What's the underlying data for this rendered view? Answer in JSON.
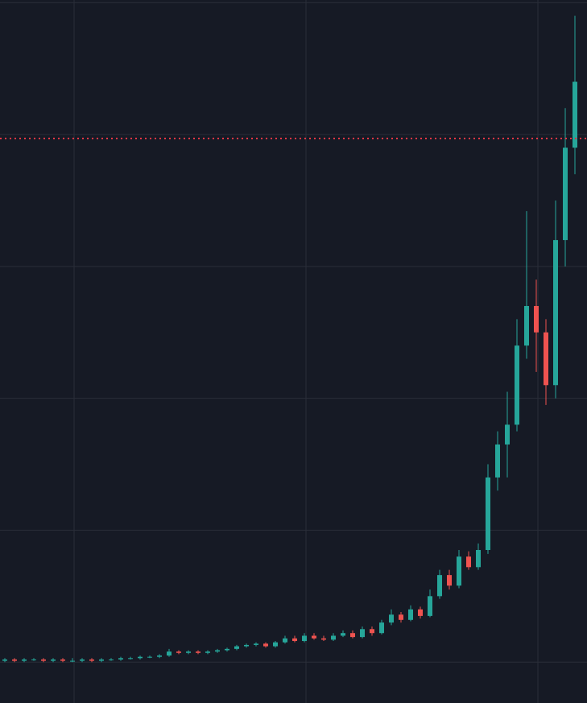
{
  "chart_data": {
    "type": "candlestick",
    "up_color": "#26a69a",
    "down_color": "#ef5350",
    "grid": true,
    "grid_y": [
      0,
      1,
      2,
      3,
      4,
      5
    ],
    "ylim": [
      -0.31,
      5.02
    ],
    "price_line": {
      "value": 3.97,
      "color": "#f23645"
    },
    "open": [
      0.01,
      0.02,
      0.01,
      0.02,
      0.02,
      0.01,
      0.02,
      0.01,
      0.01,
      0.02,
      0.01,
      0.02,
      0.02,
      0.03,
      0.03,
      0.04,
      0.04,
      0.05,
      0.08,
      0.07,
      0.08,
      0.07,
      0.08,
      0.09,
      0.1,
      0.12,
      0.13,
      0.14,
      0.12,
      0.15,
      0.18,
      0.16,
      0.2,
      0.18,
      0.17,
      0.2,
      0.22,
      0.19,
      0.25,
      0.22,
      0.3,
      0.36,
      0.32,
      0.4,
      0.35,
      0.5,
      0.66,
      0.58,
      0.8,
      0.72,
      0.85,
      1.4,
      1.65,
      1.8,
      2.4,
      2.7,
      2.5,
      2.1,
      3.2,
      3.9
    ],
    "high": [
      0.03,
      0.03,
      0.03,
      0.03,
      0.03,
      0.03,
      0.03,
      0.03,
      0.03,
      0.03,
      0.03,
      0.03,
      0.04,
      0.04,
      0.05,
      0.05,
      0.06,
      0.1,
      0.09,
      0.09,
      0.09,
      0.09,
      0.1,
      0.11,
      0.13,
      0.14,
      0.15,
      0.15,
      0.16,
      0.2,
      0.2,
      0.22,
      0.22,
      0.2,
      0.22,
      0.24,
      0.24,
      0.27,
      0.27,
      0.32,
      0.4,
      0.38,
      0.43,
      0.42,
      0.55,
      0.7,
      0.7,
      0.85,
      0.84,
      0.9,
      1.5,
      1.75,
      2.05,
      2.6,
      3.42,
      2.9,
      2.6,
      3.5,
      4.2,
      4.9
    ],
    "low": [
      0.0,
      0.0,
      0.0,
      0.01,
      0.0,
      0.0,
      0.0,
      0.0,
      0.0,
      0.0,
      0.0,
      0.01,
      0.01,
      0.02,
      0.02,
      0.03,
      0.03,
      0.04,
      0.06,
      0.06,
      0.06,
      0.06,
      0.07,
      0.08,
      0.09,
      0.11,
      0.12,
      0.11,
      0.11,
      0.14,
      0.15,
      0.15,
      0.17,
      0.16,
      0.16,
      0.19,
      0.18,
      0.18,
      0.2,
      0.21,
      0.28,
      0.3,
      0.31,
      0.33,
      0.34,
      0.48,
      0.55,
      0.56,
      0.7,
      0.7,
      0.82,
      1.3,
      1.4,
      1.75,
      2.3,
      2.2,
      1.95,
      2.0,
      3.0,
      3.7
    ],
    "close": [
      0.02,
      0.01,
      0.02,
      0.02,
      0.01,
      0.02,
      0.01,
      0.01,
      0.02,
      0.01,
      0.02,
      0.02,
      0.03,
      0.03,
      0.04,
      0.04,
      0.05,
      0.08,
      0.07,
      0.08,
      0.07,
      0.08,
      0.09,
      0.1,
      0.12,
      0.13,
      0.14,
      0.12,
      0.15,
      0.18,
      0.16,
      0.2,
      0.18,
      0.17,
      0.2,
      0.22,
      0.19,
      0.25,
      0.22,
      0.3,
      0.36,
      0.32,
      0.4,
      0.35,
      0.5,
      0.66,
      0.58,
      0.8,
      0.72,
      0.85,
      1.4,
      1.65,
      1.8,
      2.4,
      2.7,
      2.5,
      2.1,
      3.2,
      3.9,
      4.4
    ]
  }
}
